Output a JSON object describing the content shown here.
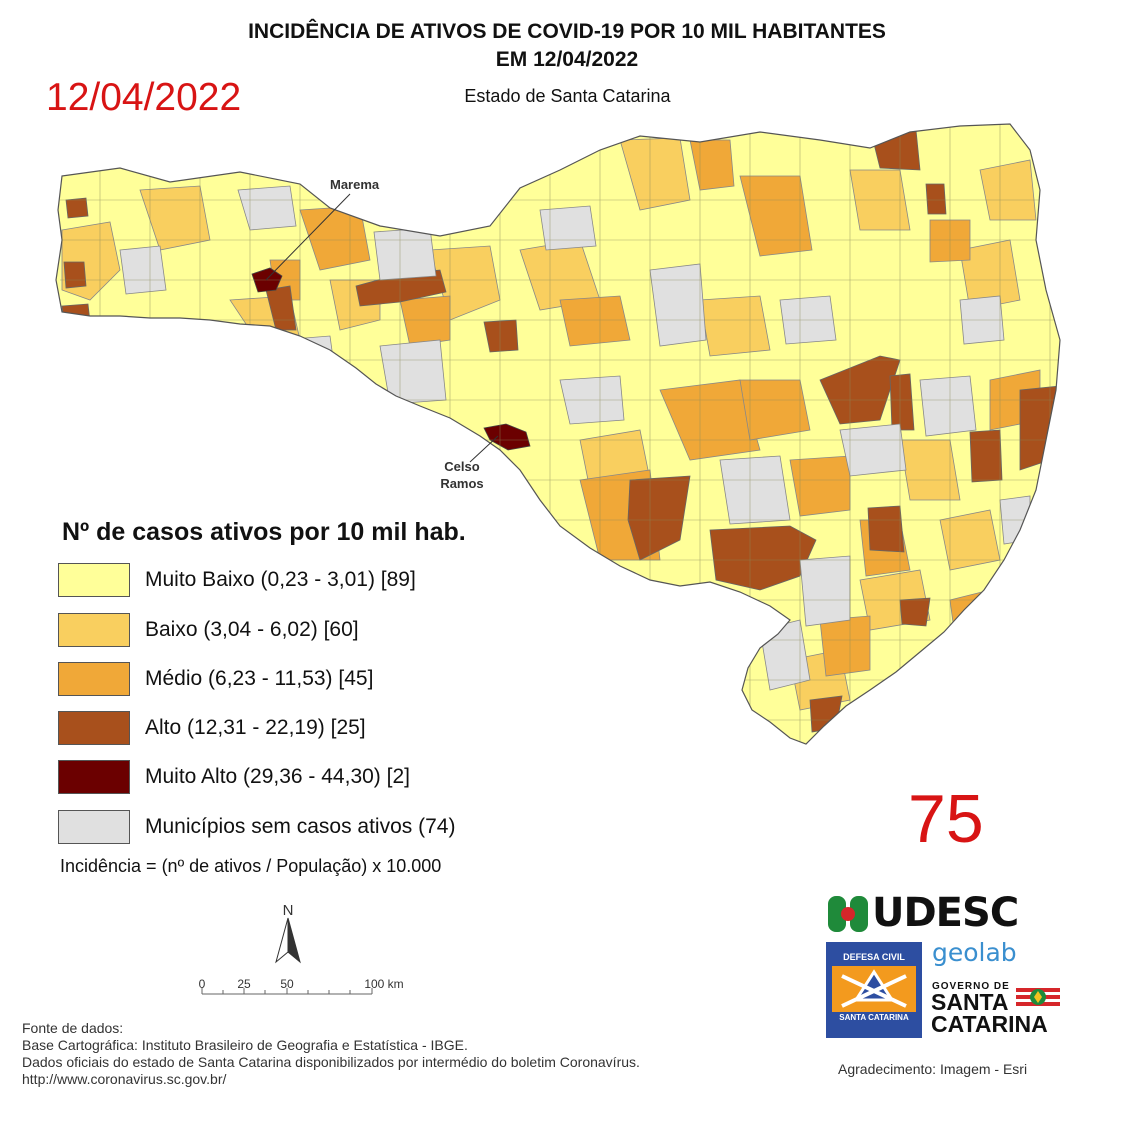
{
  "title": {
    "line1": "INCIDÊNCIA DE ATIVOS DE COVID-19 POR 10 MIL HABITANTES",
    "line2": "EM 12/04/2022",
    "subtitle": "Estado de Santa Catarina"
  },
  "date_overlay": "12/04/2022",
  "callouts": {
    "marema": "Marema",
    "celso_ramos_line1": "Celso",
    "celso_ramos_line2": "Ramos"
  },
  "legend": {
    "title": "Nº de casos ativos por 10 mil hab.",
    "items": [
      {
        "label": "Muito Baixo (0,23 - 3,01) [89]",
        "color": "#ffff99"
      },
      {
        "label": "Baixo (3,04 - 6,02) [60]",
        "color": "#f9cf5f"
      },
      {
        "label": "Médio (6,23 - 11,53) [45]",
        "color": "#f0a838"
      },
      {
        "label": "Alto (12,31 - 22,19) [25]",
        "color": "#a8501c"
      },
      {
        "label": "Muito Alto (29,36 - 44,30) [2]",
        "color": "#6b0000"
      },
      {
        "label": "Municípios sem casos ativos (74)",
        "color": "#e0e0e0"
      }
    ]
  },
  "formula": "Incidência = (nº de ativos / População) x 10.000",
  "count_overlay": "75",
  "north_label": "N",
  "scale": {
    "ticks": [
      "0",
      "25",
      "50",
      "100 km"
    ]
  },
  "sources": {
    "line1": "Fonte de dados:",
    "line2": "Base Cartográfica: Instituto Brasileiro de Geografia e Estatística - IBGE.",
    "line3": "Dados oficiais do estado de Santa Catarina disponibilizados por intermédio do boletim Coronavírus.",
    "line4": "http://www.coronavirus.sc.gov.br/"
  },
  "logos": {
    "udesc": "UDESC",
    "defesa_top": "DEFESA CIVIL",
    "defesa_bottom": "SANTA CATARINA",
    "geolab": "geolab",
    "gov_top": "GOVERNO DE",
    "gov_sc1": "SANTA",
    "gov_sc2": "CATARINA"
  },
  "acknowledgement": "Agradecimento: Imagem - Esri"
}
